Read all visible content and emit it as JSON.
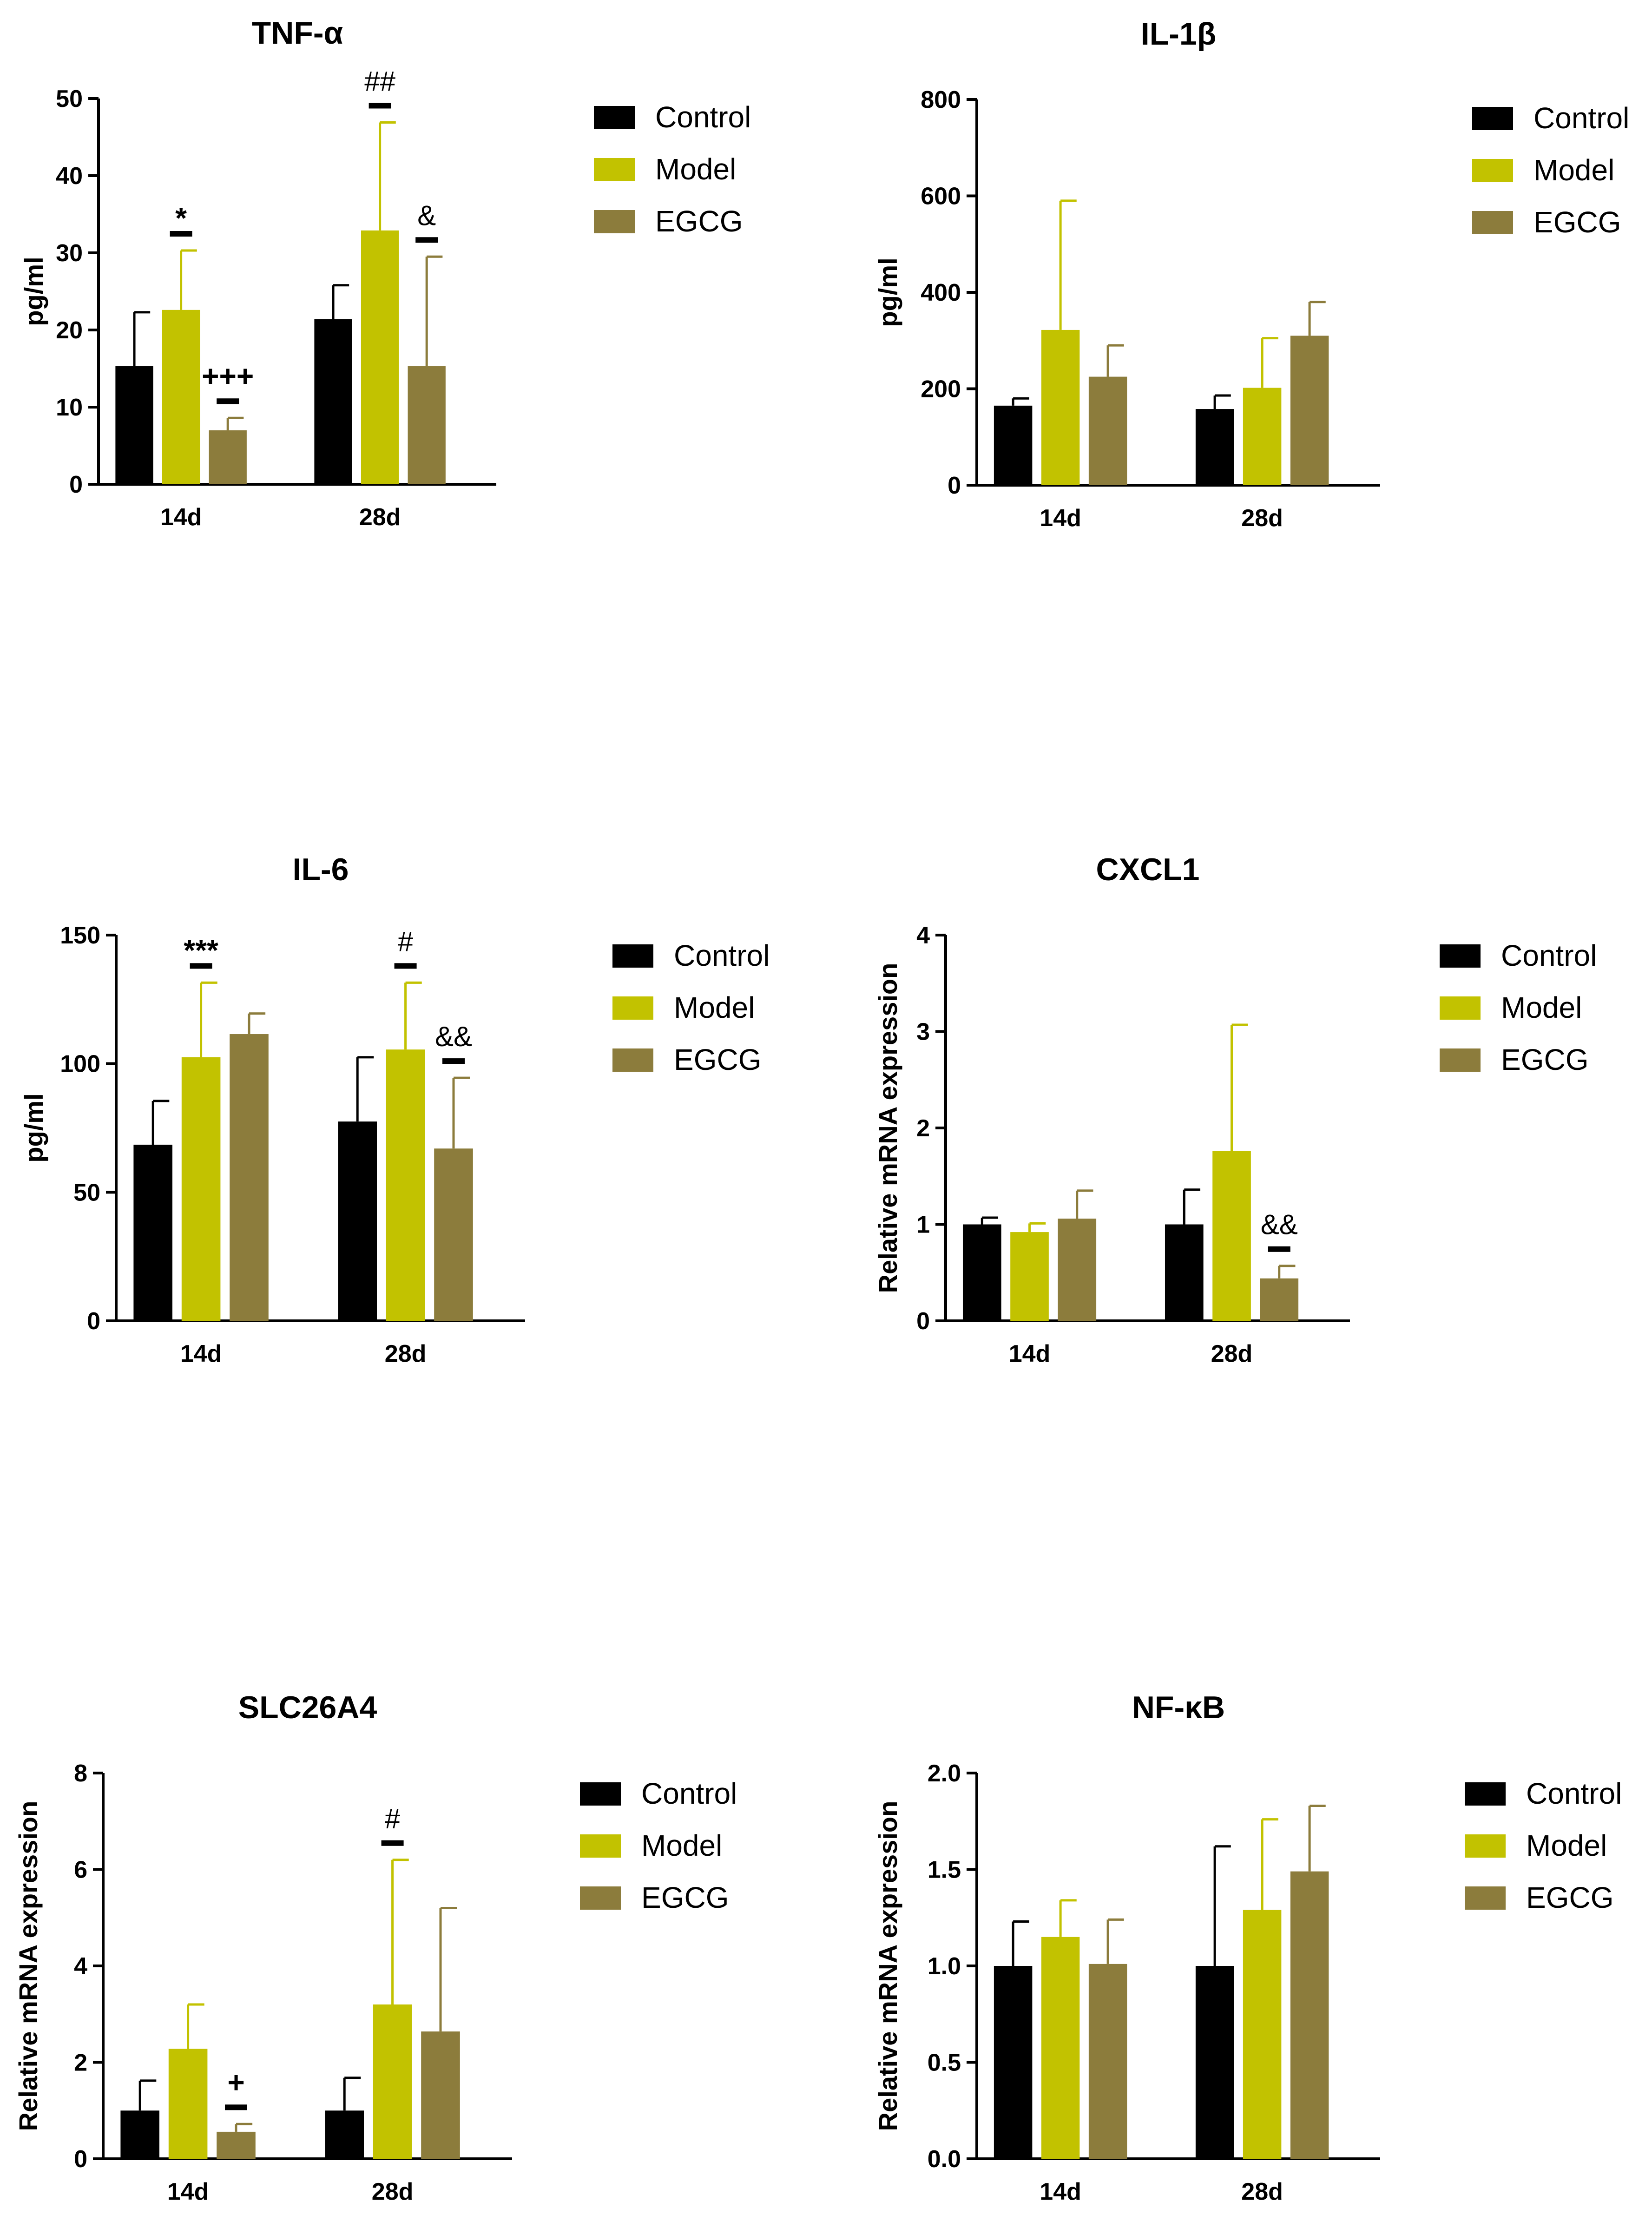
{
  "chart_data": [
    {
      "type": "bar",
      "title": "TNF-α",
      "ylabel": "pg/ml",
      "xlabel": "",
      "categories": [
        "14d",
        "28d"
      ],
      "ylim": [
        0,
        50
      ],
      "yticks": [
        0,
        10,
        20,
        30,
        40,
        50
      ],
      "series": [
        {
          "name": "Control",
          "color": "#000000",
          "values": [
            15.3,
            21.4
          ],
          "errors": [
            7.0,
            4.4
          ],
          "annotations": [
            "",
            ""
          ]
        },
        {
          "name": "Model",
          "color": "#c2c200",
          "values": [
            22.6,
            32.9
          ],
          "errors": [
            7.7,
            14.0
          ],
          "annotations": [
            "*",
            "##"
          ]
        },
        {
          "name": "EGCG",
          "color": "#8c7c3c",
          "values": [
            7.0,
            15.3
          ],
          "errors": [
            1.6,
            14.2
          ],
          "annotations": [
            "+++",
            "&"
          ]
        }
      ],
      "legend": [
        "Control",
        "Model",
        "EGCG"
      ],
      "legend_position": "right"
    },
    {
      "type": "bar",
      "title": "IL-1β",
      "ylabel": "pg/ml",
      "xlabel": "",
      "categories": [
        "14d",
        "28d"
      ],
      "ylim": [
        0,
        800
      ],
      "yticks": [
        0,
        200,
        400,
        600,
        800
      ],
      "series": [
        {
          "name": "Control",
          "color": "#000000",
          "values": [
            165,
            158
          ],
          "errors": [
            15,
            28
          ],
          "annotations": [
            "",
            ""
          ]
        },
        {
          "name": "Model",
          "color": "#c2c200",
          "values": [
            322,
            202
          ],
          "errors": [
            268,
            103
          ],
          "annotations": [
            "",
            ""
          ]
        },
        {
          "name": "EGCG",
          "color": "#8c7c3c",
          "values": [
            225,
            310
          ],
          "errors": [
            65,
            70
          ],
          "annotations": [
            "",
            ""
          ]
        }
      ],
      "legend": [
        "Control",
        "Model",
        "EGCG"
      ],
      "legend_position": "right"
    },
    {
      "type": "bar",
      "title": "IL-6",
      "ylabel": "pg/ml",
      "xlabel": "",
      "categories": [
        "14d",
        "28d"
      ],
      "ylim": [
        0,
        150
      ],
      "yticks": [
        0,
        50,
        100,
        150
      ],
      "series": [
        {
          "name": "Control",
          "color": "#000000",
          "values": [
            68.5,
            77.5
          ],
          "errors": [
            17,
            25
          ],
          "annotations": [
            "",
            ""
          ]
        },
        {
          "name": "Model",
          "color": "#c2c200",
          "values": [
            102.5,
            105.5
          ],
          "errors": [
            29,
            26
          ],
          "annotations": [
            "***",
            "#"
          ]
        },
        {
          "name": "EGCG",
          "color": "#8c7c3c",
          "values": [
            111.5,
            67
          ],
          "errors": [
            8,
            27.5
          ],
          "annotations": [
            "",
            "&&"
          ]
        }
      ],
      "legend": [
        "Control",
        "Model",
        "EGCG"
      ],
      "legend_position": "right"
    },
    {
      "type": "bar",
      "title": "CXCL1",
      "ylabel": "Relative mRNA expression",
      "xlabel": "",
      "categories": [
        "14d",
        "28d"
      ],
      "ylim": [
        0,
        4
      ],
      "yticks": [
        0,
        1,
        2,
        3,
        4
      ],
      "series": [
        {
          "name": "Control",
          "color": "#000000",
          "values": [
            1.0,
            1.0
          ],
          "errors": [
            0.07,
            0.36
          ],
          "annotations": [
            "",
            ""
          ]
        },
        {
          "name": "Model",
          "color": "#c2c200",
          "values": [
            0.92,
            1.76
          ],
          "errors": [
            0.09,
            1.31
          ],
          "annotations": [
            "",
            ""
          ]
        },
        {
          "name": "EGCG",
          "color": "#8c7c3c",
          "values": [
            1.06,
            0.44
          ],
          "errors": [
            0.29,
            0.13
          ],
          "annotations": [
            "",
            "&&"
          ]
        }
      ],
      "legend": [
        "Control",
        "Model",
        "EGCG"
      ],
      "legend_position": "right"
    },
    {
      "type": "bar",
      "title": "SLC26A4",
      "ylabel": "Relative mRNA expression",
      "xlabel": "",
      "categories": [
        "14d",
        "28d"
      ],
      "ylim": [
        0,
        8
      ],
      "yticks": [
        0,
        2,
        4,
        6,
        8
      ],
      "series": [
        {
          "name": "Control",
          "color": "#000000",
          "values": [
            1.0,
            1.0
          ],
          "errors": [
            0.62,
            0.68
          ],
          "annotations": [
            "",
            ""
          ]
        },
        {
          "name": "Model",
          "color": "#c2c200",
          "values": [
            2.28,
            3.2
          ],
          "errors": [
            0.92,
            3.0
          ],
          "annotations": [
            "",
            "#"
          ]
        },
        {
          "name": "EGCG",
          "color": "#8c7c3c",
          "values": [
            0.56,
            2.64
          ],
          "errors": [
            0.16,
            2.56
          ],
          "annotations": [
            "+",
            ""
          ]
        }
      ],
      "legend": [
        "Control",
        "Model",
        "EGCG"
      ],
      "legend_position": "right"
    },
    {
      "type": "bar",
      "title": "NF-κB",
      "ylabel": "Relative mRNA expression",
      "xlabel": "",
      "categories": [
        "14d",
        "28d"
      ],
      "ylim": [
        0,
        2.0
      ],
      "yticks": [
        "0.0",
        "0.5",
        "1.0",
        "1.5",
        "2.0"
      ],
      "series": [
        {
          "name": "Control",
          "color": "#000000",
          "values": [
            1.0,
            1.0
          ],
          "errors": [
            0.23,
            0.62
          ],
          "annotations": [
            "",
            ""
          ]
        },
        {
          "name": "Model",
          "color": "#c2c200",
          "values": [
            1.15,
            1.29
          ],
          "errors": [
            0.19,
            0.47
          ],
          "annotations": [
            "",
            ""
          ]
        },
        {
          "name": "EGCG",
          "color": "#8c7c3c",
          "values": [
            1.01,
            1.49
          ],
          "errors": [
            0.23,
            0.34
          ],
          "annotations": [
            "",
            ""
          ]
        }
      ],
      "legend": [
        "Control",
        "Model",
        "EGCG"
      ],
      "legend_position": "right"
    }
  ]
}
